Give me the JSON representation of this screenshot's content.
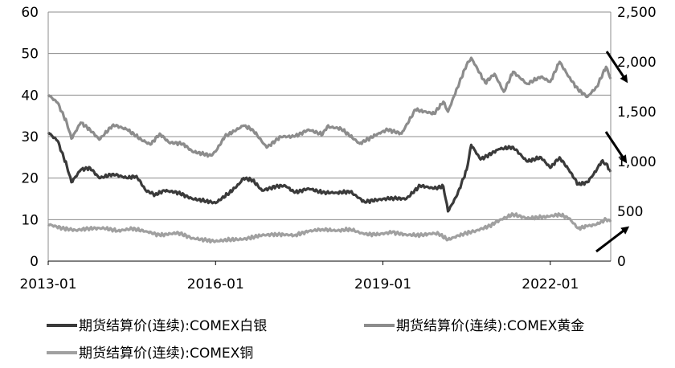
{
  "chart_data": {
    "type": "line",
    "x_ticks": [
      "2013-01",
      "2016-01",
      "2019-01",
      "2022-01"
    ],
    "xlim": [
      "2013-01",
      "2023-02"
    ],
    "y_left": {
      "ylim": [
        0,
        60
      ],
      "ticks": [
        "0",
        "10",
        "20",
        "30",
        "40",
        "50",
        "60"
      ]
    },
    "y_right": {
      "ylim": [
        0,
        2500
      ],
      "ticks": [
        "0",
        "500",
        "1,000",
        "1,500",
        "2,000",
        "2,500"
      ]
    },
    "grid": "horizontal",
    "legend_position": "bottom",
    "series": [
      {
        "name": "期货结算价(连续):COMEX白银",
        "axis": "left",
        "color": "#3a3a3a",
        "points": [
          [
            "2013-01",
            31.0
          ],
          [
            "2013-03",
            29.0
          ],
          [
            "2013-05",
            23.0
          ],
          [
            "2013-06",
            19.0
          ],
          [
            "2013-08",
            22.0
          ],
          [
            "2013-10",
            22.5
          ],
          [
            "2013-12",
            20.0
          ],
          [
            "2014-03",
            21.0
          ],
          [
            "2014-06",
            20.0
          ],
          [
            "2014-08",
            20.5
          ],
          [
            "2014-10",
            17.0
          ],
          [
            "2014-12",
            16.0
          ],
          [
            "2015-02",
            17.0
          ],
          [
            "2015-05",
            16.5
          ],
          [
            "2015-08",
            15.0
          ],
          [
            "2015-11",
            14.5
          ],
          [
            "2016-01",
            14.0
          ],
          [
            "2016-04",
            16.5
          ],
          [
            "2016-06",
            18.5
          ],
          [
            "2016-07",
            20.0
          ],
          [
            "2016-09",
            19.5
          ],
          [
            "2016-11",
            17.0
          ],
          [
            "2017-02",
            18.0
          ],
          [
            "2017-04",
            18.2
          ],
          [
            "2017-06",
            16.5
          ],
          [
            "2017-09",
            17.5
          ],
          [
            "2017-12",
            16.5
          ],
          [
            "2018-03",
            16.5
          ],
          [
            "2018-06",
            16.7
          ],
          [
            "2018-09",
            14.3
          ],
          [
            "2018-12",
            14.8
          ],
          [
            "2019-03",
            15.2
          ],
          [
            "2019-06",
            15.0
          ],
          [
            "2019-09",
            18.2
          ],
          [
            "2019-12",
            17.5
          ],
          [
            "2020-02",
            18.0
          ],
          [
            "2020-03",
            12.0
          ],
          [
            "2020-05",
            16.0
          ],
          [
            "2020-07",
            22.0
          ],
          [
            "2020-08",
            28.0
          ],
          [
            "2020-10",
            24.5
          ],
          [
            "2021-02",
            27.0
          ],
          [
            "2021-05",
            27.5
          ],
          [
            "2021-08",
            24.0
          ],
          [
            "2021-11",
            25.0
          ],
          [
            "2022-01",
            22.5
          ],
          [
            "2022-03",
            25.0
          ],
          [
            "2022-05",
            22.0
          ],
          [
            "2022-07",
            18.5
          ],
          [
            "2022-09",
            19.0
          ],
          [
            "2022-11",
            22.0
          ],
          [
            "2022-12",
            24.0
          ],
          [
            "2023-01",
            23.5
          ],
          [
            "2023-02",
            21.5
          ]
        ]
      },
      {
        "name": "期货结算价(连续):COMEX黄金",
        "axis": "right",
        "color": "#8c8c8c",
        "points": [
          [
            "2013-01",
            1670
          ],
          [
            "2013-03",
            1590
          ],
          [
            "2013-05",
            1390
          ],
          [
            "2013-06",
            1230
          ],
          [
            "2013-08",
            1390
          ],
          [
            "2013-10",
            1320
          ],
          [
            "2013-12",
            1220
          ],
          [
            "2014-03",
            1370
          ],
          [
            "2014-06",
            1320
          ],
          [
            "2014-09",
            1220
          ],
          [
            "2014-11",
            1170
          ],
          [
            "2015-01",
            1280
          ],
          [
            "2015-03",
            1190
          ],
          [
            "2015-06",
            1180
          ],
          [
            "2015-08",
            1100
          ],
          [
            "2015-12",
            1060
          ],
          [
            "2016-01",
            1100
          ],
          [
            "2016-03",
            1250
          ],
          [
            "2016-07",
            1360
          ],
          [
            "2016-09",
            1320
          ],
          [
            "2016-12",
            1140
          ],
          [
            "2017-03",
            1250
          ],
          [
            "2017-06",
            1250
          ],
          [
            "2017-09",
            1320
          ],
          [
            "2017-12",
            1270
          ],
          [
            "2018-01",
            1350
          ],
          [
            "2018-04",
            1330
          ],
          [
            "2018-08",
            1180
          ],
          [
            "2018-12",
            1280
          ],
          [
            "2019-02",
            1320
          ],
          [
            "2019-05",
            1280
          ],
          [
            "2019-08",
            1520
          ],
          [
            "2019-12",
            1480
          ],
          [
            "2020-02",
            1600
          ],
          [
            "2020-03",
            1500
          ],
          [
            "2020-05",
            1740
          ],
          [
            "2020-07",
            1970
          ],
          [
            "2020-08",
            2040
          ],
          [
            "2020-11",
            1790
          ],
          [
            "2021-01",
            1880
          ],
          [
            "2021-03",
            1700
          ],
          [
            "2021-05",
            1900
          ],
          [
            "2021-08",
            1780
          ],
          [
            "2021-11",
            1850
          ],
          [
            "2022-01",
            1800
          ],
          [
            "2022-03",
            2000
          ],
          [
            "2022-05",
            1850
          ],
          [
            "2022-07",
            1720
          ],
          [
            "2022-09",
            1650
          ],
          [
            "2022-11",
            1750
          ],
          [
            "2023-01",
            1950
          ],
          [
            "2023-02",
            1830
          ]
        ]
      },
      {
        "name": "期货结算价(连续):COMEX铜",
        "axis": "right",
        "color": "#a0a0a0",
        "points": [
          [
            "2013-01",
            370
          ],
          [
            "2013-04",
            330
          ],
          [
            "2013-07",
            310
          ],
          [
            "2013-10",
            330
          ],
          [
            "2014-01",
            330
          ],
          [
            "2014-04",
            305
          ],
          [
            "2014-07",
            325
          ],
          [
            "2014-10",
            300
          ],
          [
            "2015-01",
            260
          ],
          [
            "2015-05",
            285
          ],
          [
            "2015-08",
            230
          ],
          [
            "2015-11",
            210
          ],
          [
            "2016-01",
            200
          ],
          [
            "2016-04",
            215
          ],
          [
            "2016-07",
            220
          ],
          [
            "2016-11",
            260
          ],
          [
            "2017-02",
            270
          ],
          [
            "2017-06",
            260
          ],
          [
            "2017-09",
            300
          ],
          [
            "2017-12",
            320
          ],
          [
            "2018-03",
            305
          ],
          [
            "2018-06",
            320
          ],
          [
            "2018-09",
            270
          ],
          [
            "2018-12",
            270
          ],
          [
            "2019-03",
            290
          ],
          [
            "2019-06",
            265
          ],
          [
            "2019-09",
            260
          ],
          [
            "2019-12",
            280
          ],
          [
            "2020-01",
            275
          ],
          [
            "2020-03",
            215
          ],
          [
            "2020-06",
            270
          ],
          [
            "2020-09",
            305
          ],
          [
            "2020-12",
            355
          ],
          [
            "2021-02",
            410
          ],
          [
            "2021-05",
            470
          ],
          [
            "2021-08",
            430
          ],
          [
            "2021-11",
            440
          ],
          [
            "2022-01",
            450
          ],
          [
            "2022-03",
            470
          ],
          [
            "2022-05",
            430
          ],
          [
            "2022-07",
            330
          ],
          [
            "2022-09",
            350
          ],
          [
            "2022-11",
            370
          ],
          [
            "2023-01",
            420
          ],
          [
            "2023-02",
            395
          ]
        ]
      }
    ],
    "annotations": [
      "arrow-down-gold",
      "arrow-down-silver",
      "arrow-up-copper"
    ]
  }
}
